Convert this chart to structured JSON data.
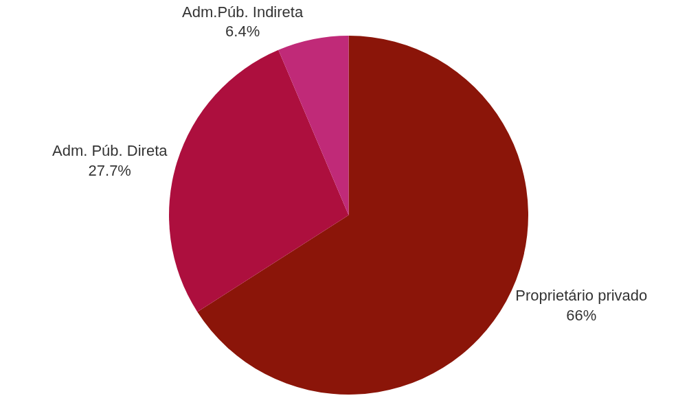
{
  "chart_data": {
    "type": "pie",
    "categories": [
      "Proprietário privado",
      "Adm. Púb. Direta",
      "Adm.Púb. Indireta"
    ],
    "values": [
      66,
      27.7,
      6.4
    ],
    "value_labels": [
      "66%",
      "27.7%",
      "6.4%"
    ],
    "colors": [
      "#8b1509",
      "#ad0f3e",
      "#c02a78"
    ],
    "legend": false
  }
}
